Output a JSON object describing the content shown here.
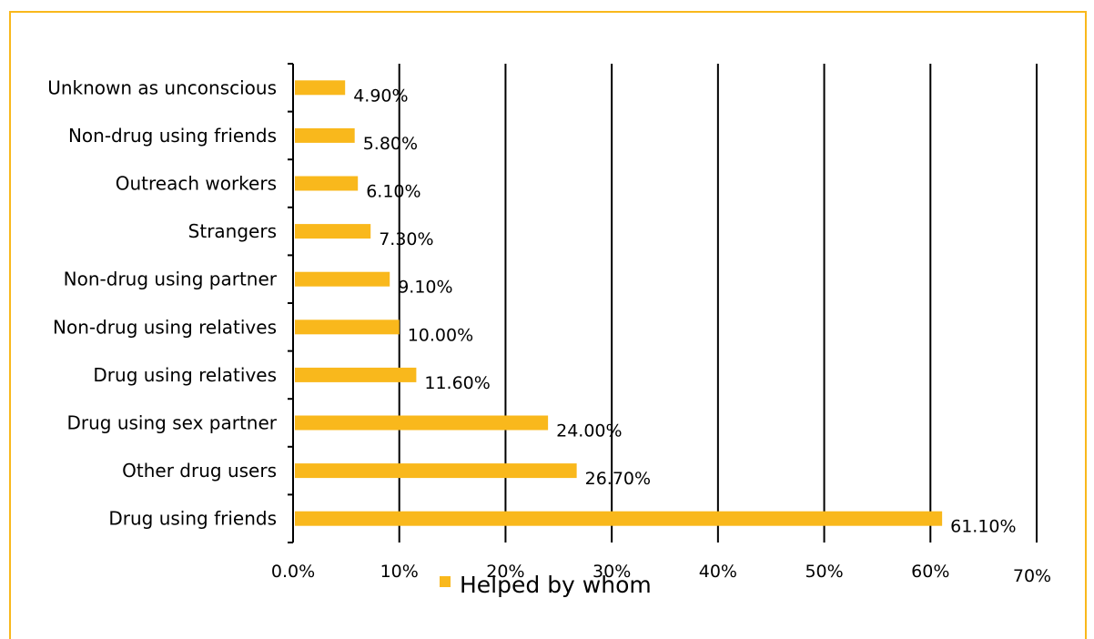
{
  "chart_data": {
    "type": "bar",
    "orientation": "horizontal",
    "categories": [
      "Unknown as unconscious",
      "Non-drug using friends",
      "Outreach workers",
      "Strangers",
      "Non-drug using partner",
      "Non-drug using relatives",
      "Drug using relatives",
      "Drug using sex partner",
      "Other drug users",
      "Drug using friends"
    ],
    "series": [
      {
        "name": "Helped by whom",
        "values": [
          4.9,
          5.8,
          6.1,
          7.3,
          9.1,
          10.0,
          11.6,
          24.0,
          26.7,
          61.1
        ],
        "labels": [
          "4.90%",
          "5.80%",
          "6.10%",
          "7.30%",
          "9.10%",
          "10.00%",
          "11.60%",
          "24.00%",
          "26.70%",
          "61.10%"
        ]
      }
    ],
    "xlim": [
      0,
      70
    ],
    "x_ticks": [
      0,
      10,
      20,
      30,
      40,
      50,
      60,
      70
    ],
    "x_tick_labels": [
      "0.0%",
      "10%",
      "20%",
      "30%",
      "40%",
      "50%",
      "60%",
      "70%"
    ],
    "grid": "vertical",
    "legend_position": "bottom",
    "title": "",
    "xlabel": "",
    "ylabel": ""
  },
  "colors": {
    "bar": "#F9B81C",
    "border": "#F9B81C",
    "grid": "#000000",
    "text": "#000000"
  }
}
